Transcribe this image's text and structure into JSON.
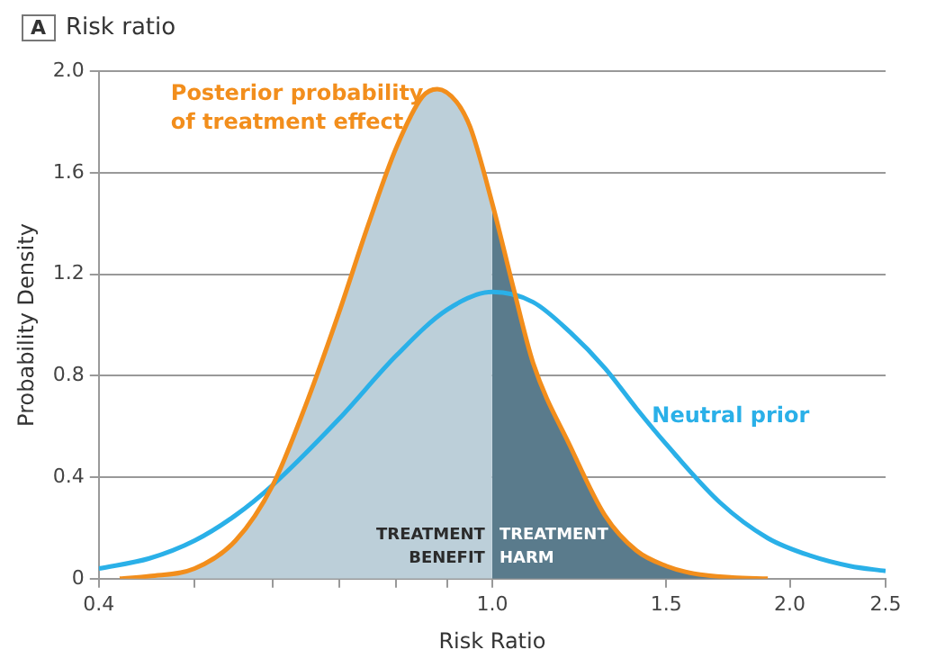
{
  "chart_data": {
    "type": "line",
    "title": "Risk ratio",
    "xlabel": "Risk Ratio",
    "ylabel": "Probability Density",
    "annotations": [
      "A",
      "TREATMENT BENEFIT",
      "TREATMENT HARM"
    ],
    "log": "x",
    "xlim": [
      0.4,
      2.5
    ],
    "ylim": [
      0,
      2
    ],
    "xticks": [
      0.4,
      {
        "value": 0.5,
        "label": null
      },
      {
        "value": 0.6,
        "label": null
      },
      {
        "value": 0.7,
        "label": null
      },
      {
        "value": 0.8,
        "label": null
      },
      {
        "value": 0.9,
        "label": null
      },
      {
        "value": 1,
        "label": "1.0"
      },
      1.5,
      {
        "value": 2,
        "label": "2.0"
      },
      2.5
    ],
    "yticks": [
      0,
      0.4,
      0.8,
      1.2,
      1.6,
      {
        "value": 2,
        "label": "2.0"
      }
    ],
    "grid": "y",
    "legend": false,
    "marker": "none",
    "line_style": "solid",
    "series": [
      {
        "type": "area",
        "color": "#bccfd9",
        "x": [
          0.42,
          0.45,
          0.5,
          0.55,
          0.6,
          0.65,
          0.7,
          0.75,
          0.8,
          0.85,
          0.88,
          0.92,
          0.95,
          1.0
        ],
        "values": [
          0,
          0.01,
          0.04,
          0.15,
          0.37,
          0.7,
          1.05,
          1.4,
          1.7,
          1.9,
          1.93,
          1.88,
          1.78,
          1.48
        ]
      },
      {
        "type": "area",
        "color": "#5a7b8c",
        "x": [
          1.0,
          1.05,
          1.1,
          1.2,
          1.3,
          1.4,
          1.5,
          1.6,
          1.75,
          1.9
        ],
        "values": [
          1.48,
          1.15,
          0.85,
          0.52,
          0.25,
          0.11,
          0.05,
          0.02,
          0.005,
          0
        ]
      },
      {
        "name": "Neutral prior",
        "color": "#2ab0e8",
        "x": [
          0.4,
          0.45,
          0.5,
          0.55,
          0.6,
          0.7,
          0.8,
          0.9,
          1.0,
          1.1,
          1.2,
          1.3,
          1.4,
          1.5,
          1.7,
          1.9,
          2.1,
          2.3,
          2.5
        ],
        "values": [
          0.04,
          0.08,
          0.15,
          0.25,
          0.37,
          0.63,
          0.88,
          1.06,
          1.13,
          1.09,
          0.97,
          0.83,
          0.67,
          0.53,
          0.3,
          0.16,
          0.09,
          0.05,
          0.03
        ]
      },
      {
        "name": "Posterior probability of treatment effect",
        "color": "#f28e1c",
        "x": [
          0.42,
          0.45,
          0.5,
          0.55,
          0.6,
          0.65,
          0.7,
          0.75,
          0.8,
          0.85,
          0.88,
          0.92,
          0.95,
          1.0,
          1.05,
          1.1,
          1.2,
          1.3,
          1.4,
          1.5,
          1.6,
          1.75,
          1.9
        ],
        "values": [
          0,
          0.01,
          0.04,
          0.15,
          0.37,
          0.7,
          1.05,
          1.4,
          1.7,
          1.9,
          1.93,
          1.88,
          1.78,
          1.48,
          1.15,
          0.85,
          0.52,
          0.25,
          0.11,
          0.05,
          0.02,
          0.005,
          0
        ]
      }
    ]
  }
}
